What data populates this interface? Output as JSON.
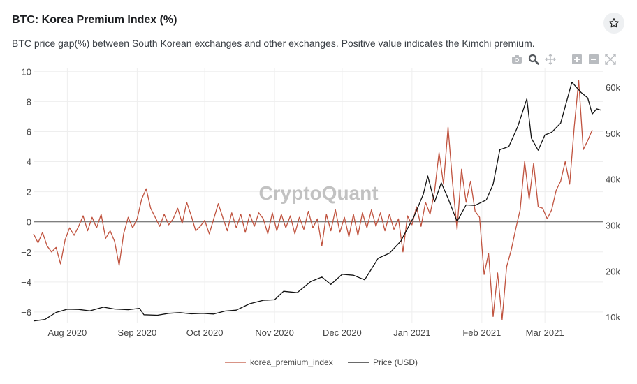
{
  "header": {
    "title": "BTC: Korea Premium Index (%)",
    "subtitle": "BTC price gap(%) between South Korean exchanges and other exchanges. Positive value indicates the Kimchi premium."
  },
  "icons": {
    "favorite": "star-icon",
    "toolbar": [
      "camera-icon",
      "zoom-icon",
      "pan-icon",
      "zoom-in-icon",
      "zoom-out-icon",
      "autoscale-icon"
    ]
  },
  "watermark": "CryptoQuant",
  "colors": {
    "premium": "#c0533f",
    "price": "#111111",
    "grid": "#eeeeee",
    "zero": "#555555"
  },
  "chart_data": {
    "type": "line",
    "x_type": "date",
    "x_ticks": [
      {
        "date": "2020-08-01",
        "label": "Aug 2020"
      },
      {
        "date": "2020-09-01",
        "label": "Sep 2020"
      },
      {
        "date": "2020-10-01",
        "label": "Oct 2020"
      },
      {
        "date": "2020-11-01",
        "label": "Nov 2020"
      },
      {
        "date": "2020-12-01",
        "label": "Dec 2020"
      },
      {
        "date": "2021-01-01",
        "label": "Jan 2021"
      },
      {
        "date": "2021-02-01",
        "label": "Feb 2021"
      },
      {
        "date": "2021-03-01",
        "label": "Mar 2021"
      }
    ],
    "xlim": [
      "2020-07-17",
      "2021-03-27"
    ],
    "y_left": {
      "ylim": [
        -6.7,
        10.2
      ],
      "ticks": [
        10,
        8,
        6,
        4,
        2,
        0,
        -2,
        -4,
        -6
      ],
      "tick_labels": [
        "10",
        "8",
        "6",
        "4",
        "2",
        "0",
        "−2",
        "−4",
        "−6"
      ]
    },
    "y_right": {
      "ylim": [
        8800,
        64100
      ],
      "ticks": [
        60000,
        50000,
        40000,
        30000,
        20000,
        10000
      ],
      "tick_labels": [
        "60k",
        "50k",
        "40k",
        "30k",
        "20k",
        "10k"
      ]
    },
    "series": [
      {
        "name": "korea_premium_index",
        "axis": "left",
        "points": [
          [
            "2020-07-17",
            -0.8
          ],
          [
            "2020-07-19",
            -1.4
          ],
          [
            "2020-07-21",
            -0.7
          ],
          [
            "2020-07-23",
            -1.6
          ],
          [
            "2020-07-25",
            -2.0
          ],
          [
            "2020-07-27",
            -1.7
          ],
          [
            "2020-07-29",
            -2.8
          ],
          [
            "2020-07-31",
            -1.2
          ],
          [
            "2020-08-02",
            -0.4
          ],
          [
            "2020-08-04",
            -0.9
          ],
          [
            "2020-08-06",
            -0.3
          ],
          [
            "2020-08-08",
            0.4
          ],
          [
            "2020-08-10",
            -0.6
          ],
          [
            "2020-08-12",
            0.3
          ],
          [
            "2020-08-14",
            -0.4
          ],
          [
            "2020-08-16",
            0.5
          ],
          [
            "2020-08-18",
            -1.1
          ],
          [
            "2020-08-20",
            -0.6
          ],
          [
            "2020-08-22",
            -1.3
          ],
          [
            "2020-08-24",
            -2.9
          ],
          [
            "2020-08-26",
            -0.8
          ],
          [
            "2020-08-28",
            0.3
          ],
          [
            "2020-08-30",
            -0.4
          ],
          [
            "2020-09-01",
            0.2
          ],
          [
            "2020-09-03",
            1.5
          ],
          [
            "2020-09-05",
            2.2
          ],
          [
            "2020-09-07",
            0.9
          ],
          [
            "2020-09-09",
            0.3
          ],
          [
            "2020-09-11",
            -0.3
          ],
          [
            "2020-09-13",
            0.5
          ],
          [
            "2020-09-15",
            -0.2
          ],
          [
            "2020-09-17",
            0.2
          ],
          [
            "2020-09-19",
            0.9
          ],
          [
            "2020-09-21",
            -0.1
          ],
          [
            "2020-09-23",
            1.3
          ],
          [
            "2020-09-25",
            0.4
          ],
          [
            "2020-09-27",
            -0.6
          ],
          [
            "2020-09-29",
            -0.3
          ],
          [
            "2020-10-01",
            0.1
          ],
          [
            "2020-10-03",
            -0.8
          ],
          [
            "2020-10-05",
            0.2
          ],
          [
            "2020-10-07",
            1.2
          ],
          [
            "2020-10-09",
            0.3
          ],
          [
            "2020-10-11",
            -0.6
          ],
          [
            "2020-10-13",
            0.6
          ],
          [
            "2020-10-15",
            -0.4
          ],
          [
            "2020-10-17",
            0.5
          ],
          [
            "2020-10-19",
            -0.7
          ],
          [
            "2020-10-21",
            0.5
          ],
          [
            "2020-10-23",
            -0.3
          ],
          [
            "2020-10-25",
            0.6
          ],
          [
            "2020-10-27",
            0.2
          ],
          [
            "2020-10-29",
            -0.8
          ],
          [
            "2020-10-31",
            0.6
          ],
          [
            "2020-11-02",
            -0.6
          ],
          [
            "2020-11-04",
            0.5
          ],
          [
            "2020-11-06",
            -0.4
          ],
          [
            "2020-11-08",
            0.4
          ],
          [
            "2020-11-10",
            -0.8
          ],
          [
            "2020-11-12",
            0.3
          ],
          [
            "2020-11-14",
            -0.5
          ],
          [
            "2020-11-16",
            0.7
          ],
          [
            "2020-11-18",
            -0.4
          ],
          [
            "2020-11-20",
            0.2
          ],
          [
            "2020-11-22",
            -1.6
          ],
          [
            "2020-11-24",
            0.5
          ],
          [
            "2020-11-26",
            -0.6
          ],
          [
            "2020-11-28",
            0.8
          ],
          [
            "2020-11-30",
            -0.7
          ],
          [
            "2020-12-02",
            0.3
          ],
          [
            "2020-12-04",
            -1.0
          ],
          [
            "2020-12-06",
            0.5
          ],
          [
            "2020-12-08",
            -0.9
          ],
          [
            "2020-12-10",
            0.6
          ],
          [
            "2020-12-12",
            -0.4
          ],
          [
            "2020-12-14",
            0.8
          ],
          [
            "2020-12-16",
            -0.3
          ],
          [
            "2020-12-18",
            0.6
          ],
          [
            "2020-12-20",
            -0.6
          ],
          [
            "2020-12-22",
            0.5
          ],
          [
            "2020-12-24",
            -0.5
          ],
          [
            "2020-12-26",
            0.2
          ],
          [
            "2020-12-28",
            -2.0
          ],
          [
            "2020-12-30",
            0.4
          ],
          [
            "2021-01-01",
            -0.2
          ],
          [
            "2021-01-03",
            1.0
          ],
          [
            "2021-01-05",
            -0.3
          ],
          [
            "2021-01-07",
            1.3
          ],
          [
            "2021-01-09",
            0.5
          ],
          [
            "2021-01-11",
            2.0
          ],
          [
            "2021-01-13",
            4.6
          ],
          [
            "2021-01-15",
            2.5
          ],
          [
            "2021-01-17",
            6.3
          ],
          [
            "2021-01-19",
            2.6
          ],
          [
            "2021-01-21",
            -0.5
          ],
          [
            "2021-01-23",
            3.5
          ],
          [
            "2021-01-25",
            1.3
          ],
          [
            "2021-01-27",
            2.7
          ],
          [
            "2021-01-29",
            0.7
          ],
          [
            "2021-01-31",
            0.3
          ],
          [
            "2021-02-02",
            -3.5
          ],
          [
            "2021-02-04",
            -2.1
          ],
          [
            "2021-02-06",
            -6.3
          ],
          [
            "2021-02-08",
            -3.4
          ],
          [
            "2021-02-10",
            -6.5
          ],
          [
            "2021-02-12",
            -3.0
          ],
          [
            "2021-02-14",
            -1.9
          ],
          [
            "2021-02-16",
            -0.5
          ],
          [
            "2021-02-18",
            0.8
          ],
          [
            "2021-02-20",
            4.0
          ],
          [
            "2021-02-22",
            1.5
          ],
          [
            "2021-02-24",
            3.9
          ],
          [
            "2021-02-26",
            1.0
          ],
          [
            "2021-02-28",
            0.9
          ],
          [
            "2021-03-02",
            0.2
          ],
          [
            "2021-03-04",
            0.8
          ],
          [
            "2021-03-06",
            2.1
          ],
          [
            "2021-03-08",
            2.7
          ],
          [
            "2021-03-10",
            4.0
          ],
          [
            "2021-03-12",
            2.5
          ],
          [
            "2021-03-14",
            6.3
          ],
          [
            "2021-03-16",
            9.4
          ],
          [
            "2021-03-18",
            4.8
          ],
          [
            "2021-03-20",
            5.4
          ],
          [
            "2021-03-22",
            6.1
          ]
        ]
      },
      {
        "name": "Price (USD)",
        "axis": "right",
        "points": [
          [
            "2020-07-17",
            9150
          ],
          [
            "2020-07-22",
            9450
          ],
          [
            "2020-07-27",
            11000
          ],
          [
            "2020-08-01",
            11700
          ],
          [
            "2020-08-06",
            11650
          ],
          [
            "2020-08-11",
            11350
          ],
          [
            "2020-08-17",
            12150
          ],
          [
            "2020-08-22",
            11750
          ],
          [
            "2020-08-28",
            11600
          ],
          [
            "2020-09-02",
            11900
          ],
          [
            "2020-09-04",
            10500
          ],
          [
            "2020-09-10",
            10400
          ],
          [
            "2020-09-15",
            10800
          ],
          [
            "2020-09-20",
            10950
          ],
          [
            "2020-09-25",
            10700
          ],
          [
            "2020-09-30",
            10800
          ],
          [
            "2020-10-05",
            10650
          ],
          [
            "2020-10-10",
            11300
          ],
          [
            "2020-10-15",
            11500
          ],
          [
            "2020-10-21",
            12900
          ],
          [
            "2020-10-27",
            13650
          ],
          [
            "2020-11-01",
            13750
          ],
          [
            "2020-11-05",
            15600
          ],
          [
            "2020-11-11",
            15300
          ],
          [
            "2020-11-17",
            17700
          ],
          [
            "2020-11-22",
            18700
          ],
          [
            "2020-11-26",
            17100
          ],
          [
            "2020-12-01",
            19300
          ],
          [
            "2020-12-06",
            19100
          ],
          [
            "2020-12-11",
            18100
          ],
          [
            "2020-12-17",
            22800
          ],
          [
            "2020-12-22",
            23900
          ],
          [
            "2020-12-27",
            26500
          ],
          [
            "2021-01-02",
            32000
          ],
          [
            "2021-01-06",
            36700
          ],
          [
            "2021-01-08",
            40700
          ],
          [
            "2021-01-11",
            35000
          ],
          [
            "2021-01-14",
            39200
          ],
          [
            "2021-01-17",
            35800
          ],
          [
            "2021-01-21",
            30800
          ],
          [
            "2021-01-25",
            34400
          ],
          [
            "2021-01-29",
            34300
          ],
          [
            "2021-02-03",
            35500
          ],
          [
            "2021-02-06",
            38900
          ],
          [
            "2021-02-09",
            46400
          ],
          [
            "2021-02-13",
            47100
          ],
          [
            "2021-02-17",
            51500
          ],
          [
            "2021-02-21",
            57500
          ],
          [
            "2021-02-23",
            48900
          ],
          [
            "2021-02-26",
            46300
          ],
          [
            "2021-03-01",
            49600
          ],
          [
            "2021-03-04",
            50200
          ],
          [
            "2021-03-08",
            52200
          ],
          [
            "2021-03-13",
            61100
          ],
          [
            "2021-03-17",
            58900
          ],
          [
            "2021-03-20",
            57700
          ],
          [
            "2021-03-22",
            54200
          ],
          [
            "2021-03-24",
            55300
          ],
          [
            "2021-03-26",
            55000
          ]
        ]
      }
    ],
    "legend_position": "bottom"
  }
}
